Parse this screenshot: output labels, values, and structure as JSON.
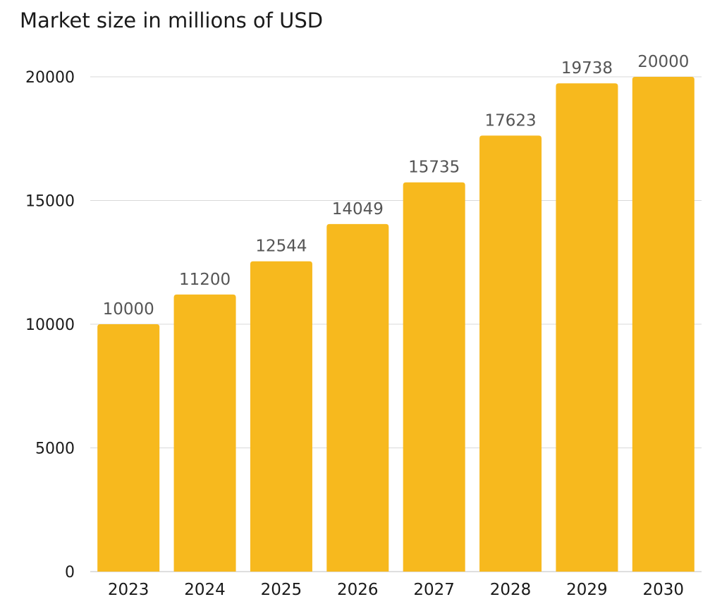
{
  "chart_data": {
    "type": "bar",
    "title": "Market size in millions of USD",
    "xlabel": "",
    "ylabel": "",
    "categories": [
      "2023",
      "2024",
      "2025",
      "2026",
      "2027",
      "2028",
      "2029",
      "2030"
    ],
    "values": [
      10000,
      11200,
      12544,
      14049,
      15735,
      17623,
      19738,
      20000
    ],
    "ylim": [
      0,
      20000
    ],
    "yticks": [
      0,
      5000,
      10000,
      15000,
      20000
    ],
    "grid": true,
    "legend": "none",
    "bar_color": "#F7B91E",
    "data_labels": true
  }
}
